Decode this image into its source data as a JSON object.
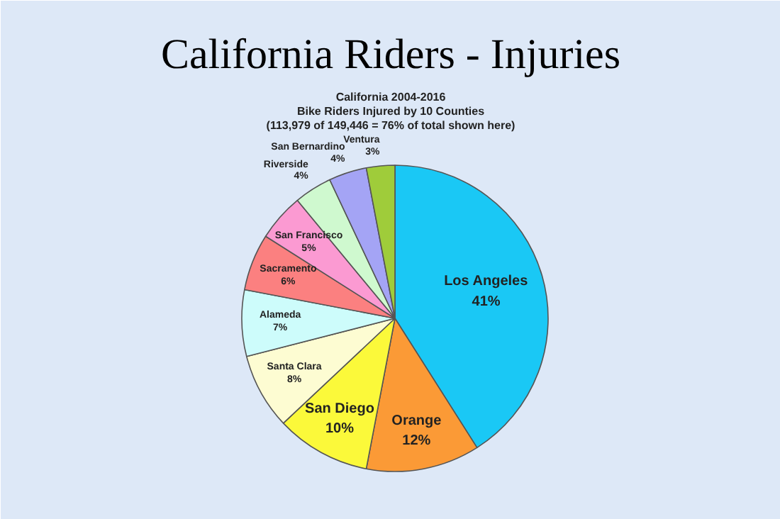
{
  "chart_data": {
    "type": "pie",
    "title": "California Riders - Injuries",
    "subtitle": "California 2004-2016\nBike Riders Injured by 10 Counties\n(113,979 of 149,446 = 76% of total shown here)",
    "categories": [
      "Los Angeles",
      "Orange",
      "San Diego",
      "Santa Clara",
      "Alameda",
      "Sacramento",
      "San Francisco",
      "Riverside",
      "San Bernardino",
      "Ventura"
    ],
    "values": [
      41,
      12,
      10,
      8,
      7,
      6,
      5,
      4,
      4,
      3
    ],
    "value_labels": [
      "41%",
      "12%",
      "10%",
      "8%",
      "7%",
      "6%",
      "5%",
      "4%",
      "4%",
      "3%"
    ],
    "colors": [
      "#1ac8f5",
      "#fb9a36",
      "#fbf93a",
      "#fdfcd2",
      "#cdfcfb",
      "#fb8080",
      "#fb9ad2",
      "#cff9cf",
      "#a4a4f5",
      "#9fcc3a"
    ]
  }
}
